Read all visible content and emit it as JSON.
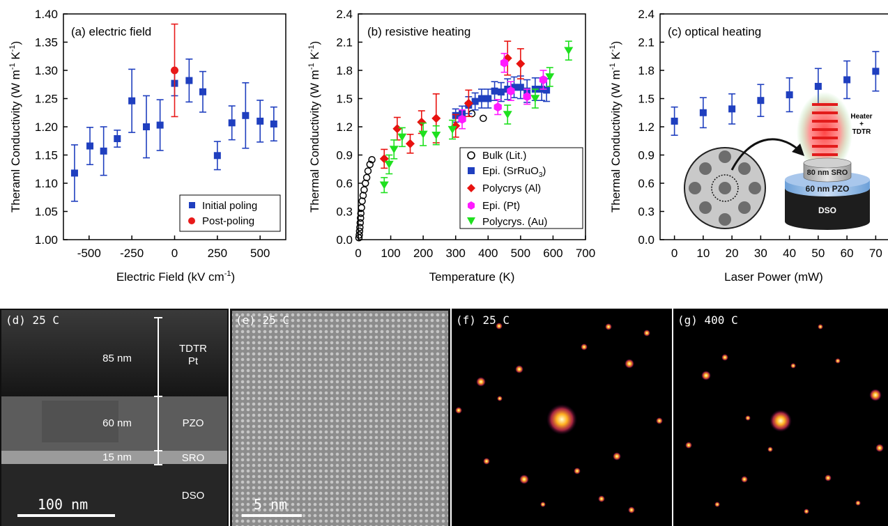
{
  "chart_data": [
    {
      "type": "scatter",
      "panel_label": "(a) electric field",
      "xlabel": "Electric Field (kV cm",
      "xlabel_sup": "-1",
      "xlabel_tail": ")",
      "ylabel": "Theraml Conductivity (W m",
      "ylabel_sup1": "-1",
      "ylabel_mid": " K",
      "ylabel_sup2": "-1",
      "ylabel_tail": ")",
      "xlim": [
        -650,
        650
      ],
      "ylim": [
        1.0,
        1.4
      ],
      "x_ticks": [
        -500,
        -250,
        0,
        250,
        500
      ],
      "x_tick_labels": [
        "-500",
        "-250",
        "0",
        "250",
        "500"
      ],
      "y_ticks": [
        1.0,
        1.05,
        1.1,
        1.15,
        1.2,
        1.25,
        1.3,
        1.35,
        1.4
      ],
      "y_tick_labels": [
        "1.00",
        "1.05",
        "1.10",
        "1.15",
        "1.20",
        "1.25",
        "1.30",
        "1.35",
        "1.40"
      ],
      "legend_position": "bottom-right",
      "series": [
        {
          "name": "Initial poling",
          "color": "#1f3fbf",
          "marker": "square",
          "points": [
            {
              "x": -585,
              "y": 1.118,
              "err": 0.05
            },
            {
              "x": -495,
              "y": 1.166,
              "err": 0.033
            },
            {
              "x": -415,
              "y": 1.157,
              "err": 0.043
            },
            {
              "x": -335,
              "y": 1.179,
              "err": 0.015
            },
            {
              "x": -250,
              "y": 1.246,
              "err": 0.056
            },
            {
              "x": -165,
              "y": 1.2,
              "err": 0.055
            },
            {
              "x": -85,
              "y": 1.203,
              "err": 0.045
            },
            {
              "x": 0,
              "y": 1.277,
              "err": 0.022
            },
            {
              "x": 85,
              "y": 1.282,
              "err": 0.038
            },
            {
              "x": 165,
              "y": 1.262,
              "err": 0.036
            },
            {
              "x": 250,
              "y": 1.149,
              "err": 0.025
            },
            {
              "x": 335,
              "y": 1.207,
              "err": 0.03
            },
            {
              "x": 415,
              "y": 1.22,
              "err": 0.058
            },
            {
              "x": 500,
              "y": 1.21,
              "err": 0.037
            },
            {
              "x": 580,
              "y": 1.205,
              "err": 0.03
            }
          ]
        },
        {
          "name": "Post-poling",
          "color": "#e81a1a",
          "marker": "circle",
          "points": [
            {
              "x": 0,
              "y": 1.3,
              "err": 0.082
            }
          ]
        }
      ]
    },
    {
      "type": "scatter",
      "panel_label": "(b) resistive heating",
      "xlabel": "Temperature (K)",
      "ylabel": "Thermal Conductivity (W m",
      "ylabel_sup1": "-1",
      "ylabel_mid": " K",
      "ylabel_sup2": "-1",
      "ylabel_tail": ")",
      "xlim": [
        0,
        700
      ],
      "ylim": [
        0,
        2.4
      ],
      "x_ticks": [
        0,
        100,
        200,
        300,
        400,
        500,
        600,
        700
      ],
      "x_tick_labels": [
        "0",
        "100",
        "200",
        "300",
        "400",
        "500",
        "600",
        "700"
      ],
      "y_ticks": [
        0,
        0.3,
        0.6,
        0.9,
        1.2,
        1.5,
        1.8,
        2.1,
        2.4
      ],
      "y_tick_labels": [
        "0.0",
        "0.3",
        "0.6",
        "0.9",
        "1.2",
        "1.5",
        "1.8",
        "2.1",
        "2.4"
      ],
      "legend_position": "bottom-right",
      "series": [
        {
          "name": "Bulk (Lit.)",
          "color": "#000000",
          "marker": "open-circle",
          "points": [
            {
              "x": 2,
              "y": 0.02
            },
            {
              "x": 3,
              "y": 0.05
            },
            {
              "x": 4,
              "y": 0.09
            },
            {
              "x": 5,
              "y": 0.13
            },
            {
              "x": 6,
              "y": 0.18
            },
            {
              "x": 7,
              "y": 0.23
            },
            {
              "x": 8,
              "y": 0.28
            },
            {
              "x": 10,
              "y": 0.34
            },
            {
              "x": 12,
              "y": 0.41
            },
            {
              "x": 15,
              "y": 0.47
            },
            {
              "x": 18,
              "y": 0.53
            },
            {
              "x": 22,
              "y": 0.6
            },
            {
              "x": 26,
              "y": 0.66
            },
            {
              "x": 30,
              "y": 0.73
            },
            {
              "x": 36,
              "y": 0.8
            },
            {
              "x": 42,
              "y": 0.85
            },
            {
              "x": 350,
              "y": 1.34
            },
            {
              "x": 385,
              "y": 1.29
            }
          ]
        },
        {
          "name": "Epi. (SrRuO",
          "name_sub": "3",
          "name_tail": ")",
          "color": "#1f3fbf",
          "marker": "square",
          "points": [
            {
              "x": 300,
              "y": 1.32,
              "err": 0.07
            },
            {
              "x": 320,
              "y": 1.34,
              "err": 0.08
            },
            {
              "x": 340,
              "y": 1.43,
              "err": 0.09
            },
            {
              "x": 360,
              "y": 1.47,
              "err": 0.09
            },
            {
              "x": 380,
              "y": 1.5,
              "err": 0.1
            },
            {
              "x": 400,
              "y": 1.5,
              "err": 0.1
            },
            {
              "x": 420,
              "y": 1.58,
              "err": 0.1
            },
            {
              "x": 440,
              "y": 1.57,
              "err": 0.1
            },
            {
              "x": 460,
              "y": 1.6,
              "err": 0.11
            },
            {
              "x": 480,
              "y": 1.62,
              "err": 0.11
            },
            {
              "x": 500,
              "y": 1.62,
              "err": 0.12
            },
            {
              "x": 520,
              "y": 1.58,
              "err": 0.12
            },
            {
              "x": 545,
              "y": 1.6,
              "err": 0.12
            },
            {
              "x": 565,
              "y": 1.6,
              "err": 0.12
            },
            {
              "x": 580,
              "y": 1.59,
              "err": 0.12
            }
          ]
        },
        {
          "name": "Polycrys (Al)",
          "color": "#e8120f",
          "marker": "diamond",
          "points": [
            {
              "x": 80,
              "y": 0.86,
              "err": 0.1
            },
            {
              "x": 120,
              "y": 1.18,
              "err": 0.12
            },
            {
              "x": 160,
              "y": 1.02,
              "err": 0.1
            },
            {
              "x": 195,
              "y": 1.25,
              "err": 0.12
            },
            {
              "x": 240,
              "y": 1.29,
              "err": 0.26
            },
            {
              "x": 300,
              "y": 1.21,
              "err": 0.12
            },
            {
              "x": 340,
              "y": 1.45,
              "err": 0.14
            },
            {
              "x": 460,
              "y": 1.93,
              "err": 0.18
            },
            {
              "x": 500,
              "y": 1.87,
              "err": 0.16
            }
          ]
        },
        {
          "name": "Epi. (Pt)",
          "color": "#ff1aff",
          "marker": "hexagon",
          "points": [
            {
              "x": 320,
              "y": 1.28,
              "err": 0.1
            },
            {
              "x": 430,
              "y": 1.41,
              "err": 0.08
            },
            {
              "x": 450,
              "y": 1.88,
              "err": 0.1
            },
            {
              "x": 470,
              "y": 1.58,
              "err": 0.1
            },
            {
              "x": 520,
              "y": 1.52,
              "err": 0.08
            },
            {
              "x": 570,
              "y": 1.7,
              "err": 0.1
            }
          ]
        },
        {
          "name": "Polycrys. (Au)",
          "color": "#1ee01e",
          "marker": "triangle-down",
          "points": [
            {
              "x": 80,
              "y": 0.58,
              "err": 0.08
            },
            {
              "x": 95,
              "y": 0.8,
              "err": 0.1
            },
            {
              "x": 110,
              "y": 0.96,
              "err": 0.1
            },
            {
              "x": 135,
              "y": 1.09,
              "err": 0.1
            },
            {
              "x": 200,
              "y": 1.12,
              "err": 0.12
            },
            {
              "x": 240,
              "y": 1.11,
              "err": 0.1
            },
            {
              "x": 290,
              "y": 1.17,
              "err": 0.1
            },
            {
              "x": 460,
              "y": 1.33,
              "err": 0.1
            },
            {
              "x": 545,
              "y": 1.5,
              "err": 0.1
            },
            {
              "x": 590,
              "y": 1.73,
              "err": 0.1
            },
            {
              "x": 648,
              "y": 2.01,
              "err": 0.1
            }
          ]
        }
      ]
    },
    {
      "type": "scatter",
      "panel_label": "(c) optical heating",
      "xlabel": "Laser Power (mW)",
      "ylabel": "Thermal Conductivity (W m",
      "ylabel_sup1": "-1",
      "ylabel_mid": " K",
      "ylabel_sup2": "-1",
      "ylabel_tail": ")",
      "xlim": [
        -5,
        75
      ],
      "ylim": [
        0,
        2.4
      ],
      "x_ticks": [
        0,
        10,
        20,
        30,
        40,
        50,
        60,
        70
      ],
      "x_tick_labels": [
        "0",
        "10",
        "20",
        "30",
        "40",
        "50",
        "60",
        "70"
      ],
      "y_ticks": [
        0,
        0.3,
        0.6,
        0.9,
        1.2,
        1.5,
        1.8,
        2.1,
        2.4
      ],
      "y_tick_labels": [
        "0.0",
        "0.3",
        "0.6",
        "0.9",
        "1.2",
        "1.5",
        "1.8",
        "2.1",
        "2.4"
      ],
      "series": [
        {
          "color": "#1f3fbf",
          "marker": "square",
          "points": [
            {
              "x": 0,
              "y": 1.26,
              "err": 0.15
            },
            {
              "x": 10,
              "y": 1.35,
              "err": 0.16
            },
            {
              "x": 20,
              "y": 1.39,
              "err": 0.16
            },
            {
              "x": 30,
              "y": 1.48,
              "err": 0.17
            },
            {
              "x": 40,
              "y": 1.54,
              "err": 0.18
            },
            {
              "x": 50,
              "y": 1.63,
              "err": 0.19
            },
            {
              "x": 60,
              "y": 1.7,
              "err": 0.2
            },
            {
              "x": 70,
              "y": 1.79,
              "err": 0.21
            }
          ]
        }
      ]
    }
  ],
  "schematic": {
    "heater_label": "Heater",
    "plus": "+",
    "tdtr_label": "TDTR",
    "sro_layer": "80 nm SRO",
    "pzo_layer": "60 nm PZO",
    "dso_layer": "DSO"
  },
  "micrographs": {
    "d": {
      "label": "(d) 25 C",
      "thickness_top": "85 nm",
      "thickness_mid": "60 nm",
      "thickness_bot": "15 nm",
      "layer_top_1": "TDTR",
      "layer_top_2": "Pt",
      "layer_mid": "PZO",
      "layer_bot": "SRO",
      "layer_sub": "DSO",
      "scale_bar": "100 nm"
    },
    "e": {
      "label": "(e) 25 C",
      "scale_bar": "5 nm"
    },
    "f": {
      "label": "(f) 25 C"
    },
    "g": {
      "label": "(g) 400 C"
    }
  }
}
